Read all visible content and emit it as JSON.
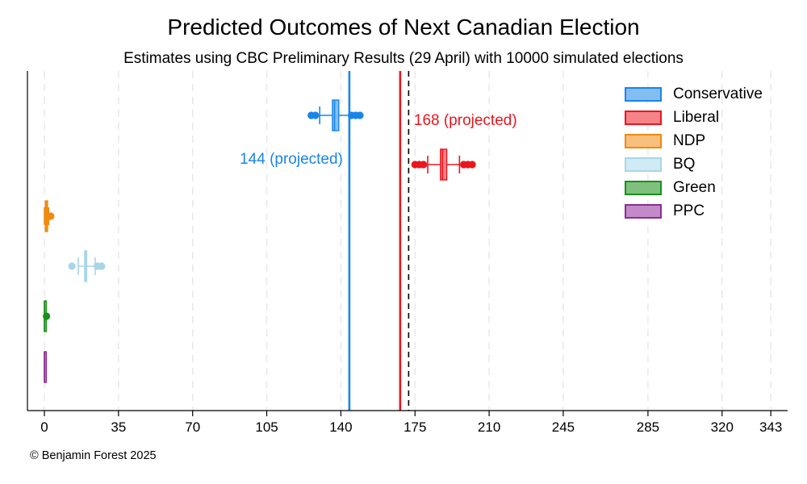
{
  "title": "Predicted Outcomes of Next Canadian Election",
  "subtitle": "Estimates using CBC Preliminary Results (29 April) with 10000 simulated elections",
  "credit": "© Benjamin Forest 2025",
  "chart_data": {
    "type": "box",
    "title": "Predicted Outcomes of Next Canadian Election",
    "subtitle": "Estimates using CBC Preliminary Results (29 April) with 10000 simulated elections",
    "xlabel": "",
    "ylabel": "",
    "xlim": [
      -7,
      352
    ],
    "x_ticks": [
      0,
      35,
      70,
      105,
      140,
      175,
      210,
      245,
      285,
      320,
      343
    ],
    "grid": true,
    "legend_position": "top-right",
    "series": [
      {
        "name": "Conservative",
        "color": "#1a85e8",
        "fill": "#84bdf1",
        "whisker_low": 130,
        "q1": 136,
        "median": 137,
        "q3": 139,
        "whisker_high": 144,
        "outliers_low": [
          126,
          128
        ],
        "outliers_high": [
          145,
          147,
          149
        ]
      },
      {
        "name": "Liberal",
        "color": "#e8161e",
        "fill": "#f58388",
        "whisker_low": 181,
        "q1": 187,
        "median": 188,
        "q3": 190,
        "whisker_high": 196,
        "outliers_low": [
          175,
          177,
          179
        ],
        "outliers_high": [
          198,
          200,
          202
        ]
      },
      {
        "name": "NDP",
        "color": "#f2890f",
        "fill": "#f8bf7d",
        "whisker_low": 0,
        "q1": 0.5,
        "median": 1,
        "q3": 1.5,
        "whisker_high": 2,
        "outliers_low": [],
        "outliers_high": [
          3
        ]
      },
      {
        "name": "BQ",
        "color": "#a8d6e6",
        "fill": "#d0ebf3",
        "whisker_low": 16,
        "q1": 19,
        "median": 19.5,
        "q3": 20,
        "whisker_high": 24,
        "outliers_low": [
          13
        ],
        "outliers_high": [
          25,
          27
        ]
      },
      {
        "name": "Green",
        "color": "#1a8f1a",
        "fill": "#7fc07f",
        "whisker_low": 0,
        "q1": 0,
        "median": 0,
        "q3": 0,
        "whisker_high": 0,
        "outliers_low": [],
        "outliers_high": [
          1
        ]
      },
      {
        "name": "PPC",
        "color": "#8a2e93",
        "fill": "#c28ac8",
        "whisker_low": 0,
        "q1": 0,
        "median": 0,
        "q3": 0,
        "whisker_high": 0,
        "outliers_low": [],
        "outliers_high": []
      }
    ],
    "reference_lines": [
      {
        "x": 144,
        "color": "#1a85e8",
        "style": "solid",
        "label": "144 (projected)"
      },
      {
        "x": 168,
        "color": "#e8161e",
        "style": "solid",
        "label": "168 (projected)"
      },
      {
        "x": 172,
        "color": "#000000",
        "style": "dashed",
        "label": ""
      }
    ]
  }
}
